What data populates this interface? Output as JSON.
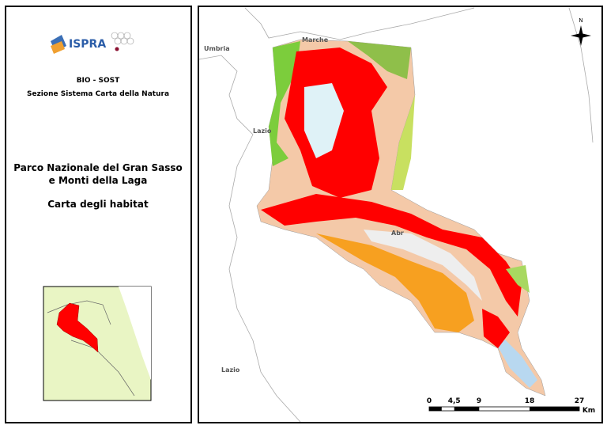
{
  "logo": {
    "name": "ISPRA"
  },
  "header": {
    "line1": "BIO - SOST",
    "line2": "Sezione Sistema Carta della Natura"
  },
  "title": {
    "line1": "Parco Nazionale del Gran Sasso",
    "line2": "e Monti della Laga",
    "subtitle": "Carta degli habitat"
  },
  "map": {
    "labels": [
      "Marche",
      "Umbria",
      "Lazio",
      "Abr",
      "Lazio"
    ],
    "north": "N"
  },
  "scale": {
    "ticks": [
      "0",
      "4,5",
      "9",
      "18",
      "27"
    ],
    "unit": "Km"
  }
}
